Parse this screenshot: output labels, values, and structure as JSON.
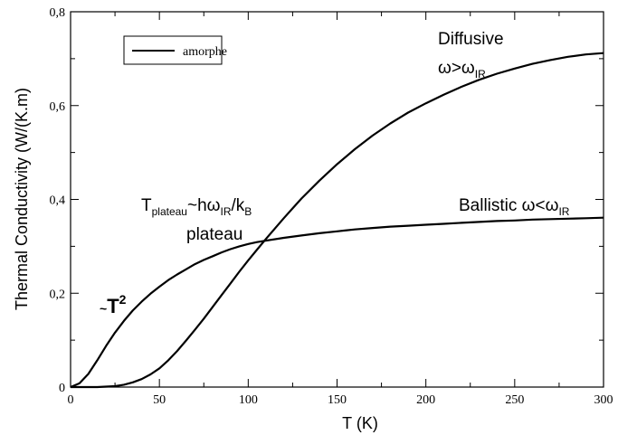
{
  "chart_data": {
    "type": "line",
    "title": "",
    "xlabel": "T (K)",
    "ylabel": "Thermal Conductivity (W/(K.m)",
    "xlim": [
      0,
      300
    ],
    "ylim": [
      0,
      0.8
    ],
    "x_ticks": [
      0,
      50,
      100,
      150,
      200,
      250,
      300
    ],
    "x_tick_labels": [
      "0",
      "50",
      "100",
      "150",
      "200",
      "250",
      "300"
    ],
    "y_ticks": [
      0,
      0.2,
      0.4,
      0.6,
      0.8
    ],
    "y_tick_labels": [
      "0",
      "0,2",
      "0,4",
      "0,6",
      "0,8"
    ],
    "grid": false,
    "legend": {
      "placement": "top-left",
      "entries": [
        "amorphe"
      ]
    },
    "series": [
      {
        "name": "amorphe",
        "color": "#000000",
        "x": [
          0,
          5,
          10,
          15,
          20,
          25,
          30,
          35,
          40,
          45,
          50,
          55,
          60,
          65,
          70,
          75,
          80,
          85,
          90,
          95,
          100,
          105,
          110,
          115,
          120,
          125,
          130,
          140,
          150,
          160,
          170,
          180,
          190,
          200,
          210,
          220,
          230,
          240,
          250,
          260,
          270,
          280,
          290,
          300
        ],
        "values": [
          0.0,
          0.0,
          0.0,
          0.0,
          0.001,
          0.002,
          0.005,
          0.01,
          0.017,
          0.027,
          0.04,
          0.057,
          0.077,
          0.099,
          0.122,
          0.146,
          0.171,
          0.196,
          0.221,
          0.246,
          0.27,
          0.293,
          0.316,
          0.338,
          0.36,
          0.381,
          0.402,
          0.44,
          0.475,
          0.507,
          0.536,
          0.562,
          0.585,
          0.605,
          0.623,
          0.64,
          0.655,
          0.668,
          0.679,
          0.689,
          0.697,
          0.704,
          0.709,
          0.712
        ]
      },
      {
        "name": "",
        "color": "#000000",
        "x": [
          0,
          5,
          10,
          15,
          20,
          25,
          30,
          35,
          40,
          45,
          50,
          55,
          60,
          65,
          70,
          75,
          80,
          85,
          90,
          95,
          100,
          105,
          110,
          120,
          130,
          140,
          150,
          160,
          170,
          180,
          190,
          200,
          210,
          220,
          230,
          240,
          250,
          260,
          270,
          280,
          290,
          300
        ],
        "values": [
          0.0,
          0.008,
          0.028,
          0.057,
          0.088,
          0.116,
          0.141,
          0.163,
          0.182,
          0.199,
          0.214,
          0.228,
          0.24,
          0.251,
          0.262,
          0.271,
          0.279,
          0.287,
          0.294,
          0.3,
          0.305,
          0.309,
          0.312,
          0.318,
          0.323,
          0.328,
          0.332,
          0.336,
          0.339,
          0.342,
          0.344,
          0.346,
          0.348,
          0.35,
          0.352,
          0.354,
          0.355,
          0.357,
          0.358,
          0.359,
          0.36,
          0.361
        ]
      }
    ],
    "annotations": {
      "diffusive": {
        "text": "Diffusive",
        "color": "#e8161e"
      },
      "diffusive_cond": {
        "a": "ω>ω",
        "sub": "IR",
        "color": "#e8161e"
      },
      "ballistic": {
        "text": "Ballistic ω<ω",
        "sub": "IR",
        "color": "#19a6d9"
      },
      "t_plateau": {
        "t": "T",
        "t_sub": "plateau",
        "mid": "~hω",
        "mid_sub": "IR",
        "tail": "/k",
        "tail_sub": "B"
      },
      "plateau": {
        "text": "plateau"
      },
      "t_squared": {
        "tilde": "~",
        "base": "T",
        "exp": "2"
      }
    }
  }
}
